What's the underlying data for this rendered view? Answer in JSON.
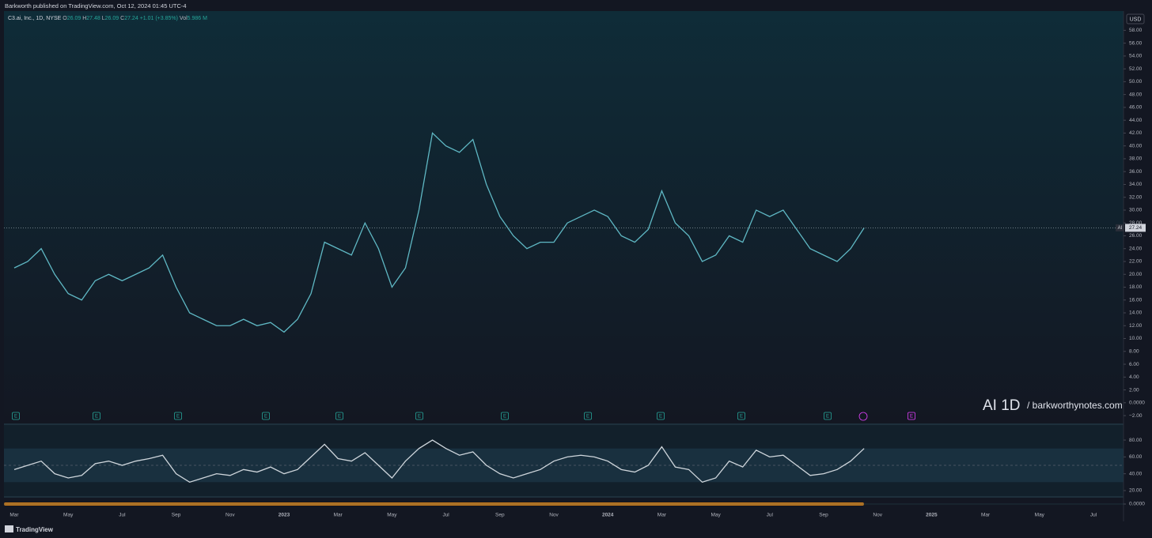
{
  "publisher": "Barkworth published on TradingView.com, Oct 12, 2024 01:45 UTC-4",
  "header": {
    "name": "C3.ai, Inc., 1D, NYSE",
    "o_label": "O",
    "open": "26.09",
    "h_label": "H",
    "high": "27.48",
    "l_label": "L",
    "low": "26.09",
    "c_label": "C",
    "close": "27.24",
    "change": "+1.01 (+3.85%)",
    "vol_label": "Vol",
    "volume": "5.986 M"
  },
  "currency": "USD",
  "symbol": "AI",
  "earnings_marker": "E",
  "watermark": {
    "ticker": "AI 1D",
    "site": "/ barkworthynotes.com"
  },
  "footer": "TradingView",
  "chart_data": [
    {
      "type": "line",
      "color": "#5fb8c4",
      "categories": [
        "Mar",
        null,
        null,
        null,
        "May",
        null,
        null,
        null,
        "Jul",
        null,
        null,
        null,
        "Sep",
        null,
        null,
        null,
        "Nov",
        null,
        null,
        null,
        "2023",
        null,
        null,
        null,
        "Mar",
        null,
        null,
        null,
        "May",
        null,
        null,
        null,
        "Jul",
        null,
        null,
        null,
        "Sep",
        null,
        null,
        null,
        "Nov",
        null,
        null,
        null,
        "2024",
        null,
        null,
        null,
        "Mar",
        null,
        null,
        null,
        "May",
        null,
        null,
        null,
        "Jul",
        null,
        null,
        null,
        "Sep",
        null,
        null,
        null,
        "Nov",
        null,
        null,
        null,
        "2025",
        null,
        null,
        null,
        "Mar",
        null,
        null,
        null,
        "May",
        null,
        null,
        null,
        "Jul",
        null,
        null
      ],
      "values": [
        21,
        22,
        24,
        20,
        17,
        16,
        19,
        20,
        19,
        20,
        21,
        23,
        18,
        14,
        13,
        12,
        12,
        13,
        12,
        12.5,
        11,
        13,
        17,
        25,
        24,
        23,
        28,
        24,
        18,
        21,
        30,
        42,
        40,
        39,
        41,
        34,
        29,
        26,
        24,
        25,
        25,
        28,
        29,
        30,
        29,
        26,
        25,
        27,
        33,
        28,
        26,
        22,
        23,
        26,
        25,
        30,
        29,
        30,
        27,
        24,
        23,
        22,
        24,
        27.24,
        null,
        null,
        null,
        null,
        null,
        null,
        null,
        null,
        null,
        null,
        null,
        null,
        null,
        null,
        null,
        null,
        null,
        null,
        null
      ],
      "ylim": [
        -3.1,
        61
      ],
      "yticks": [
        {
          "value": -2,
          "label": "−2.00"
        },
        {
          "value": 0,
          "label": "0.0000"
        },
        {
          "value": 2,
          "label": "2.00"
        },
        {
          "value": 4,
          "label": "4.00"
        },
        {
          "value": 6,
          "label": "6.00"
        },
        {
          "value": 8,
          "label": "8.00"
        },
        {
          "value": 10,
          "label": "10.00"
        },
        {
          "value": 12,
          "label": "12.00"
        },
        {
          "value": 14,
          "label": "14.00"
        },
        {
          "value": 16,
          "label": "16.00"
        },
        {
          "value": 18,
          "label": "18.00"
        },
        {
          "value": 20,
          "label": "20.00"
        },
        {
          "value": 22,
          "label": "22.00"
        },
        {
          "value": 24,
          "label": "24.00"
        },
        {
          "value": 26,
          "label": "26.00"
        },
        {
          "value": 28,
          "label": "28.00"
        },
        {
          "value": 30,
          "label": "30.00"
        },
        {
          "value": 32,
          "label": "32.00"
        },
        {
          "value": 34,
          "label": "34.00"
        },
        {
          "value": 36,
          "label": "36.00"
        },
        {
          "value": 38,
          "label": "38.00"
        },
        {
          "value": 40,
          "label": "40.00"
        },
        {
          "value": 42,
          "label": "42.00"
        },
        {
          "value": 44,
          "label": "44.00"
        },
        {
          "value": 46,
          "label": "46.00"
        },
        {
          "value": 48,
          "label": "48.00"
        },
        {
          "value": 50,
          "label": "50.00"
        },
        {
          "value": 52,
          "label": "52.00"
        },
        {
          "value": 54,
          "label": "54.00"
        },
        {
          "value": 56,
          "label": "56.00"
        },
        {
          "value": 58,
          "label": "58.00"
        }
      ]
    },
    {
      "type": "line",
      "color": "#cfd6dc",
      "values": [
        45,
        50,
        55,
        40,
        35,
        38,
        52,
        55,
        50,
        55,
        58,
        62,
        40,
        30,
        35,
        40,
        38,
        45,
        42,
        48,
        40,
        45,
        60,
        75,
        58,
        55,
        65,
        50,
        35,
        55,
        70,
        80,
        70,
        62,
        66,
        50,
        40,
        35,
        40,
        45,
        55,
        60,
        62,
        60,
        55,
        45,
        42,
        50,
        72,
        48,
        45,
        30,
        35,
        55,
        48,
        68,
        60,
        62,
        50,
        38,
        40,
        45,
        55,
        70,
        null,
        null,
        null,
        null,
        null,
        null,
        null,
        null,
        null,
        null,
        null,
        null,
        null,
        null,
        null,
        null,
        null,
        null,
        null
      ],
      "ylim": [
        13.4,
        96
      ],
      "yticks": [
        {
          "value": 20,
          "label": "20.00"
        },
        {
          "value": 40,
          "label": "40.00"
        },
        {
          "value": 60,
          "label": "60.00"
        },
        {
          "value": 80,
          "label": "80.00"
        }
      ],
      "band": [
        30,
        70
      ],
      "midline": 50
    },
    {
      "type": "oscillator",
      "ylim": [
        -1,
        1
      ],
      "yticks": [
        {
          "value": 0,
          "label": "0.0000"
        }
      ]
    }
  ]
}
